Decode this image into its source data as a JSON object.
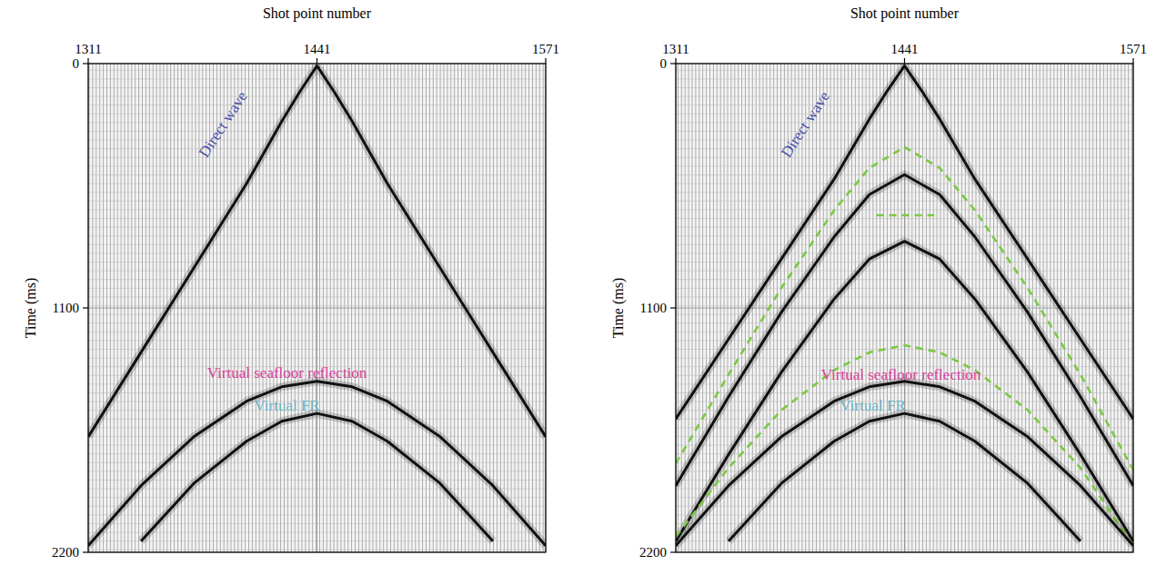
{
  "chart_data": [
    {
      "type": "line",
      "xlabel": "Shot point number",
      "ylabel": "Time (ms)",
      "xlim": [
        1311,
        1571
      ],
      "xticks": [
        1311,
        1441,
        1571
      ],
      "ylim": [
        0,
        2200
      ],
      "yticks": [
        0,
        1100,
        2200
      ],
      "grid": true,
      "series": [
        {
          "color": "#111111",
          "line_style": "solid",
          "x": [
            1311,
            1341,
            1371,
            1401,
            1421,
            1431,
            1441,
            1451,
            1461,
            1481,
            1511,
            1541,
            1571
          ],
          "values": [
            1680,
            1300,
            920,
            540,
            260,
            130,
            10,
            130,
            260,
            540,
            920,
            1300,
            1680
          ]
        },
        {
          "color": "#111111",
          "line_style": "solid",
          "x": [
            1311,
            1341,
            1371,
            1401,
            1421,
            1441,
            1461,
            1481,
            1511,
            1541,
            1571
          ],
          "values": [
            2170,
            1900,
            1680,
            1520,
            1455,
            1430,
            1455,
            1520,
            1680,
            1900,
            2170
          ]
        },
        {
          "color": "#111111",
          "line_style": "solid",
          "x": [
            1341,
            1371,
            1401,
            1421,
            1441,
            1461,
            1481,
            1511,
            1541
          ],
          "values": [
            2150,
            1890,
            1700,
            1610,
            1575,
            1610,
            1700,
            1890,
            2150
          ]
        }
      ],
      "annotations": [
        {
          "text": "Direct wave",
          "x": 1390,
          "y": 286,
          "color": "#4a4fa8"
        },
        {
          "text": "Virtual seafloor reflection",
          "x": 1424,
          "y": 1415,
          "color": "#d9409c"
        },
        {
          "text": "Virtual FR",
          "x": 1424,
          "y": 1562,
          "color": "#6ab4c8"
        }
      ]
    },
    {
      "type": "line",
      "xlabel": "Shot point number",
      "ylabel": "Time (ms)",
      "xlim": [
        1311,
        1571
      ],
      "xticks": [
        1311,
        1441,
        1571
      ],
      "ylim": [
        0,
        2200
      ],
      "yticks": [
        0,
        1100,
        2200
      ],
      "grid": true,
      "series": [
        {
          "color": "#111111",
          "line_style": "solid",
          "x": [
            1311,
            1341,
            1371,
            1401,
            1421,
            1431,
            1441,
            1451,
            1461,
            1481,
            1511,
            1541,
            1571
          ],
          "values": [
            1600,
            1240,
            880,
            520,
            250,
            125,
            10,
            125,
            250,
            520,
            880,
            1240,
            1600
          ]
        },
        {
          "color": "#7ac943",
          "line_style": "dashed",
          "x": [
            1311,
            1341,
            1371,
            1401,
            1421,
            1441,
            1461,
            1481,
            1511,
            1541,
            1571
          ],
          "values": [
            1800,
            1400,
            1010,
            660,
            470,
            376,
            470,
            660,
            1010,
            1400,
            1830
          ]
        },
        {
          "color": "#111111",
          "line_style": "solid",
          "x": [
            1311,
            1341,
            1371,
            1401,
            1421,
            1441,
            1461,
            1481,
            1511,
            1541,
            1571
          ],
          "values": [
            1900,
            1500,
            1120,
            780,
            590,
            500,
            590,
            780,
            1120,
            1500,
            1900
          ]
        },
        {
          "color": "#7ac943",
          "line_style": "dashed",
          "x": [
            1425,
            1458
          ],
          "values": [
            683,
            683
          ]
        },
        {
          "color": "#111111",
          "line_style": "solid",
          "x": [
            1311,
            1341,
            1371,
            1401,
            1421,
            1441,
            1461,
            1481,
            1511,
            1541,
            1571
          ],
          "values": [
            2150,
            1760,
            1390,
            1060,
            880,
            800,
            880,
            1060,
            1390,
            1760,
            2150
          ]
        },
        {
          "color": "#7ac943",
          "line_style": "dashed",
          "x": [
            1311,
            1341,
            1371,
            1401,
            1421,
            1441,
            1461,
            1481,
            1511,
            1541,
            1571
          ],
          "values": [
            2130,
            1820,
            1560,
            1380,
            1300,
            1268,
            1300,
            1380,
            1560,
            1820,
            2170
          ]
        },
        {
          "color": "#111111",
          "line_style": "solid",
          "x": [
            1311,
            1341,
            1371,
            1401,
            1421,
            1441,
            1461,
            1481,
            1511,
            1541,
            1571
          ],
          "values": [
            2170,
            1900,
            1680,
            1520,
            1455,
            1430,
            1455,
            1520,
            1680,
            1900,
            2170
          ]
        },
        {
          "color": "#111111",
          "line_style": "solid",
          "x": [
            1341,
            1371,
            1401,
            1421,
            1441,
            1461,
            1481,
            1511,
            1541
          ],
          "values": [
            2150,
            1890,
            1700,
            1610,
            1575,
            1610,
            1700,
            1890,
            2150
          ]
        }
      ],
      "annotations": [
        {
          "text": "Direct wave",
          "x": 1387,
          "y": 286,
          "color": "#4a4fa8"
        },
        {
          "text": "Virtual seafloor reflection",
          "x": 1439,
          "y": 1423,
          "color": "#d9409c"
        },
        {
          "text": "Virtual FR",
          "x": 1423,
          "y": 1562,
          "color": "#6ab4c8"
        }
      ]
    }
  ]
}
